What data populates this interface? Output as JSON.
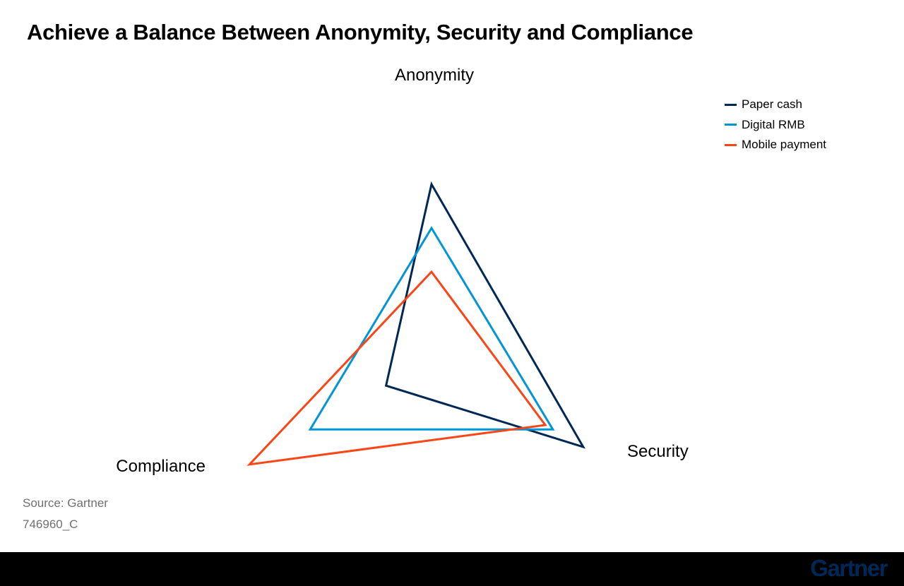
{
  "title": "Achieve a Balance Between Anonymity, Security and Compliance",
  "chart_data": {
    "type": "radar",
    "axes": [
      "Anonymity",
      "Security",
      "Compliance"
    ],
    "scale": [
      0,
      10
    ],
    "series": [
      {
        "name": "Paper cash",
        "color": "#002856",
        "values": [
          10,
          10,
          3
        ]
      },
      {
        "name": "Digital RMB",
        "color": "#0096d6",
        "values": [
          7.5,
          8,
          8
        ]
      },
      {
        "name": "Mobile payment",
        "color": "#fa4616",
        "values": [
          5,
          7.5,
          12
        ]
      }
    ],
    "legend_position": "top-right"
  },
  "footer": {
    "source": "Source: Gartner",
    "id": "746960_C"
  },
  "brand": {
    "logo_text": "Gartner",
    "logo_color": "#002856",
    "bar_color": "#000000"
  }
}
